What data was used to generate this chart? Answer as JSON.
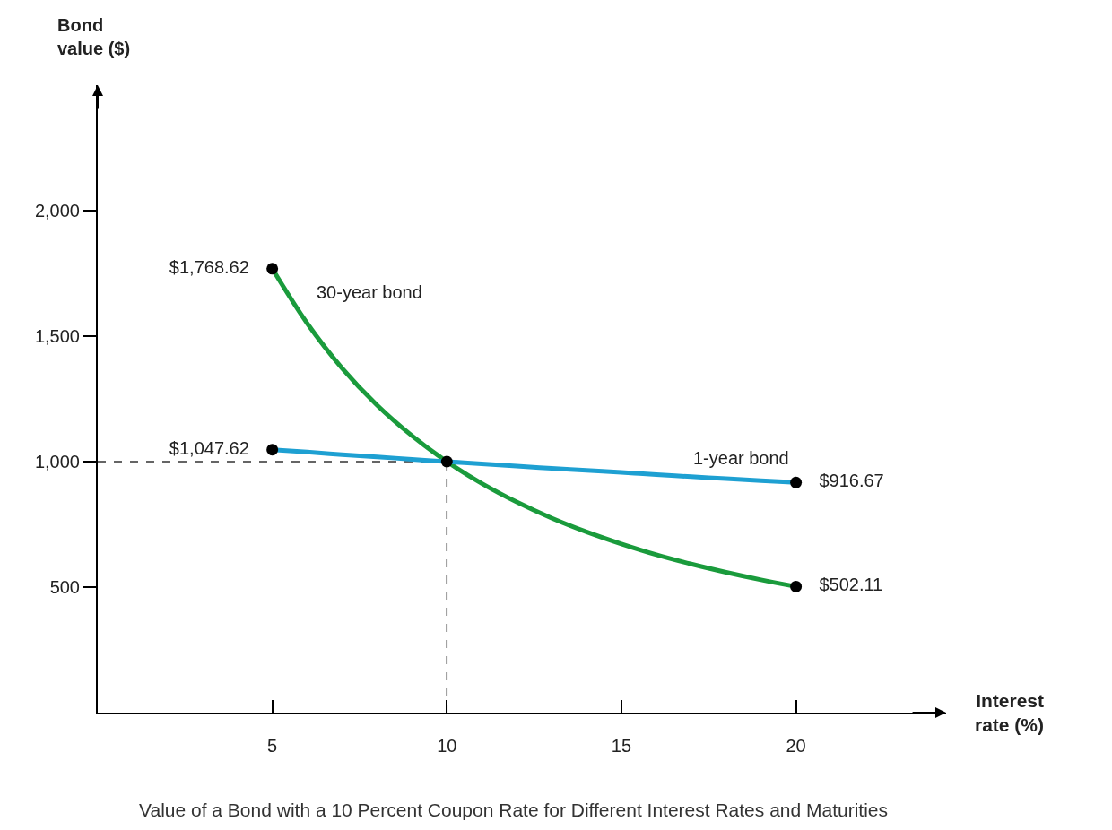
{
  "chart_data": {
    "type": "line",
    "title": "Value of a Bond with a 10 Percent Coupon Rate for Different Interest Rates and Maturities",
    "xlabel": "Interest\nrate (%)",
    "ylabel": "Bond\nvalue ($)",
    "xlim": [
      0,
      24.3
    ],
    "ylim": [
      0,
      2500
    ],
    "xticks": [
      5,
      10,
      15,
      20
    ],
    "yticks": [
      500,
      {
        "value": 1000,
        "label": "1,000"
      },
      {
        "value": 1500,
        "label": "1,500"
      },
      {
        "value": 2000,
        "label": "2,000"
      }
    ],
    "grid": false,
    "series": [
      {
        "name": "30-year bond",
        "color": "#1a9b3c",
        "x": [
          5,
          6,
          7,
          8,
          9,
          10,
          11,
          12,
          13,
          14,
          15,
          16,
          17,
          18,
          19,
          20
        ],
        "values": [
          1768.62,
          1551,
          1372,
          1225,
          1103,
          1000,
          913,
          839,
          775,
          720,
          672,
          629,
          592,
          559,
          529,
          502.11
        ]
      },
      {
        "name": "1-year bond",
        "color": "#1ea0d2",
        "x": [
          5,
          6,
          7,
          8,
          9,
          10,
          11,
          12,
          13,
          14,
          15,
          16,
          17,
          18,
          19,
          20
        ],
        "values": [
          1047.62,
          1038,
          1028,
          1019,
          1009,
          1000,
          991,
          982,
          973,
          965,
          957,
          948,
          940,
          932,
          924,
          916.67
        ]
      },
      {
        "type": "scatter",
        "color": "#000000",
        "x": [
          5,
          5,
          10,
          20,
          20
        ],
        "values": [
          1768.62,
          1047.62,
          1000,
          916.67,
          502.11
        ],
        "value_labels": [
          "$1,768.62",
          "$1,047.62",
          null,
          "$916.67",
          "$502.11"
        ]
      }
    ],
    "ref_lines": [
      {
        "axis": "y",
        "value": 1000,
        "color": "#333333",
        "line_style": "dashed"
      },
      {
        "axis": "x",
        "value": 10,
        "color": "#333333",
        "line_style": "dashed"
      }
    ]
  }
}
